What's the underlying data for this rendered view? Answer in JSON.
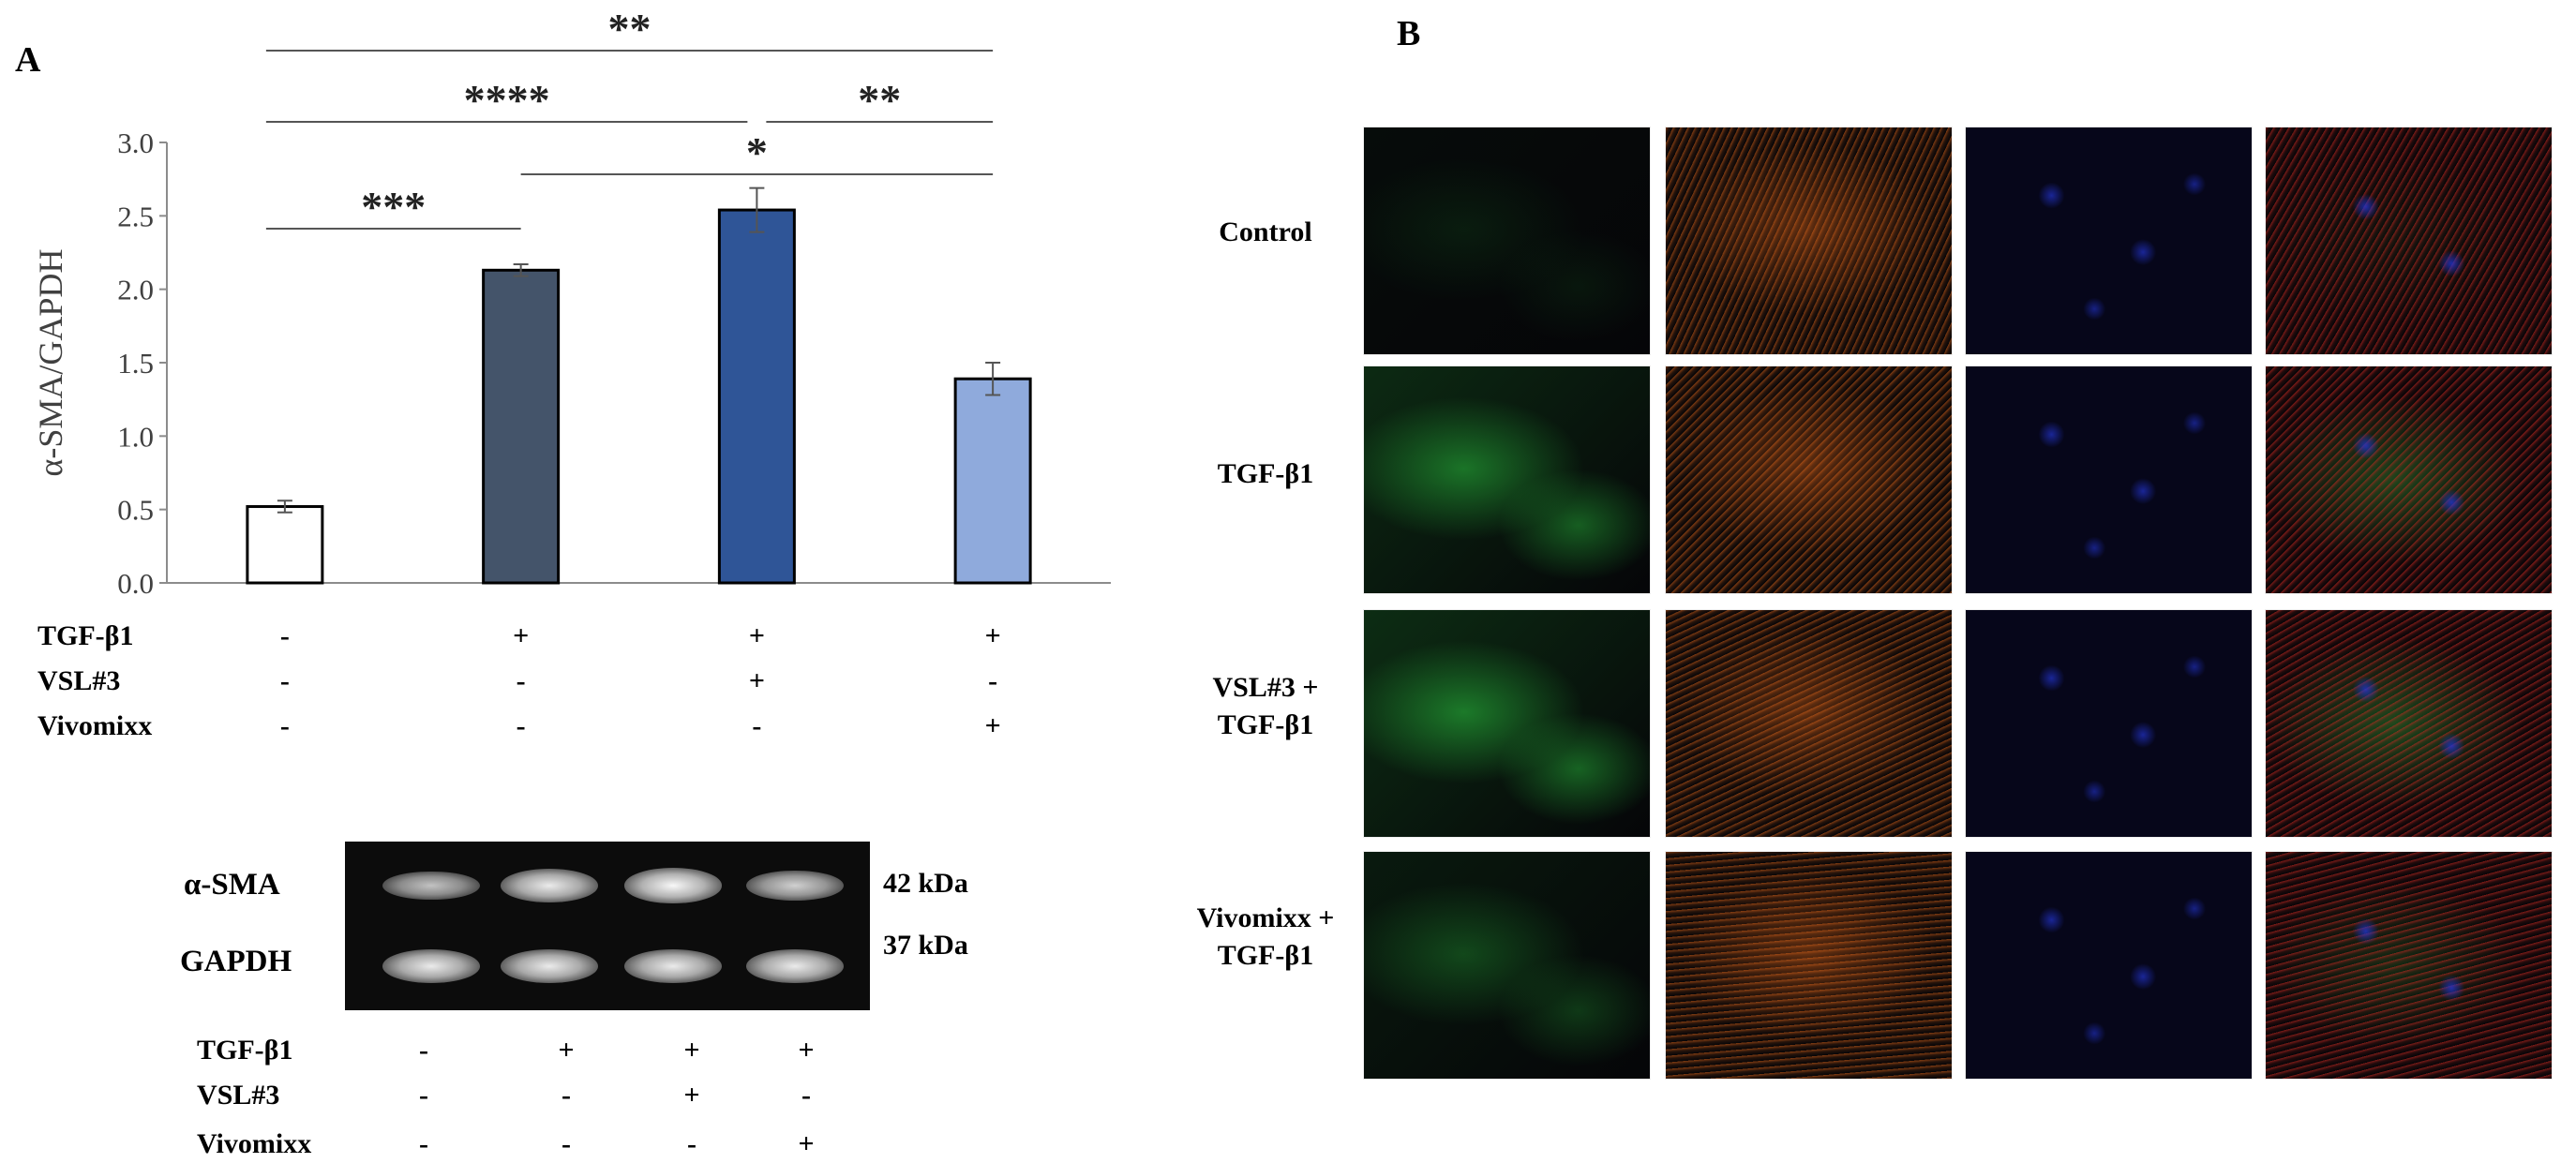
{
  "panels": {
    "a_label": "A",
    "b_label": "B"
  },
  "chart_data": {
    "type": "bar",
    "categories": [
      "1",
      "2",
      "3",
      "4"
    ],
    "values": [
      0.52,
      2.13,
      2.54,
      1.39
    ],
    "errors": [
      0.04,
      0.04,
      0.15,
      0.11
    ],
    "colors": [
      "#ffffff",
      "#44546a",
      "#2f5597",
      "#8faadc"
    ],
    "ylabel": "α-SMA/GAPDH",
    "ylim": [
      0,
      3.0
    ],
    "yticks": [
      "0.0",
      "0.5",
      "1.0",
      "1.5",
      "2.0",
      "2.5",
      "3.0"
    ],
    "grid": false,
    "significance": [
      {
        "from": 1,
        "to": 2,
        "label": "***"
      },
      {
        "from": 1,
        "to": 3,
        "label": "****"
      },
      {
        "from": 3,
        "to": 4,
        "label": "**"
      },
      {
        "from": 2,
        "to": 4,
        "label": "*"
      },
      {
        "from": 1,
        "to": 4,
        "label": "**"
      }
    ],
    "conditions": [
      {
        "name": "TGF-β1",
        "values": [
          "-",
          "+",
          "+",
          "+"
        ]
      },
      {
        "name": "VSL#3",
        "values": [
          "-",
          "-",
          "+",
          "-"
        ]
      },
      {
        "name": "Vivomixx",
        "values": [
          "-",
          "-",
          "-",
          "+"
        ]
      }
    ]
  },
  "western_blot": {
    "bands": [
      {
        "label": "α-SMA",
        "kda": "42 kDa",
        "intensity": [
          0.55,
          0.85,
          0.95,
          0.65
        ]
      },
      {
        "label": "GAPDH",
        "kda": "37 kDa",
        "intensity": [
          0.85,
          0.85,
          0.85,
          0.85
        ]
      }
    ],
    "conditions": [
      {
        "name": "TGF-β1",
        "values": [
          "-",
          "+",
          "+",
          "+"
        ]
      },
      {
        "name": "VSL#3",
        "values": [
          "-",
          "-",
          "+",
          "-"
        ]
      },
      {
        "name": "Vivomixx",
        "values": [
          "-",
          "-",
          "-",
          "+"
        ]
      }
    ]
  },
  "micrographs": {
    "rows": [
      {
        "label": "Control"
      },
      {
        "label": "TGF-β1"
      },
      {
        "label_line1": "VSL#3 +",
        "label_line2": "TGF-β1"
      },
      {
        "label_line1": "Vivomixx +",
        "label_line2": "TGF-β1"
      }
    ],
    "channel_colors": [
      "#1f8a2e",
      "#e0661a",
      "#2233cc",
      "#cc2a22"
    ]
  }
}
